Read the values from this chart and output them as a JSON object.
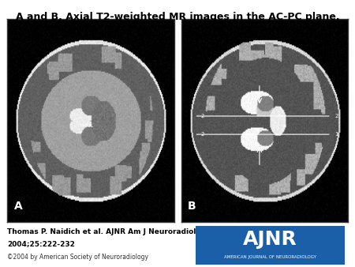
{
  "title": "A and B, Axial T2-weighted MR images in the AC-PC plane.",
  "title_fontsize": 9,
  "title_fontweight": "bold",
  "background_color": "#ffffff",
  "citation_line1": "Thomas P. Naidich et al. AJNR Am J Neuroradiol",
  "citation_line2": "2004;25:222-232",
  "copyright_text": "©2004 by American Society of Neuroradiology",
  "citation_fontsize": 6.5,
  "copyright_fontsize": 5.5,
  "label_A": "A",
  "label_B": "B",
  "label_fontsize": 10,
  "label_color": "#ffffff",
  "ajnr_box_color": "#1a5fa8",
  "ajnr_text": "AJNR",
  "ajnr_subtext": "AMERICAN JOURNAL OF NEURORADIOLOGY",
  "ajnr_text_color": "#ffffff",
  "ajnr_fontsize": 18,
  "ajnr_subtext_fontsize": 4,
  "image_border_color": "#333333",
  "fig_width": 4.5,
  "fig_height": 3.38,
  "dpi": 100
}
